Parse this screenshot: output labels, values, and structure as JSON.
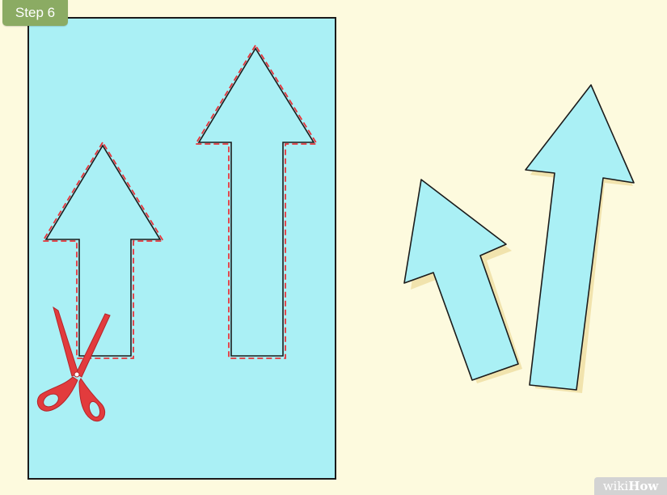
{
  "step_label": "Step 6",
  "logo": {
    "wiki": "wiki",
    "how": "How"
  },
  "colors": {
    "background": "#fdfade",
    "paper": "#aaf0f5",
    "outline": "#1b1b1b",
    "cut_line": "#e8343a",
    "scissors": "#e23b3d",
    "badge": "#8bab63"
  },
  "icons": [
    "scissors-icon",
    "arrow-outline",
    "cut-arrow"
  ]
}
